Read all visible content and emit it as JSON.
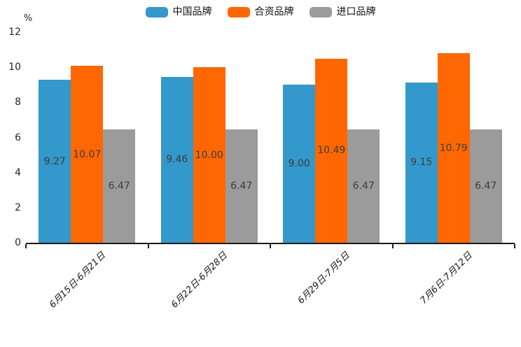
{
  "chart_data": {
    "type": "bar",
    "title": "",
    "ylabel": "%",
    "categories": [
      "6月15日-6月21日",
      "6月22日-6月28日",
      "6月29日-7月5日",
      "7月6日-7月12日"
    ],
    "series": [
      {
        "name": "中国品牌",
        "color": "#3398CB",
        "values": [
          9.27,
          9.46,
          9.0,
          9.15
        ]
      },
      {
        "name": "合资品牌",
        "color": "#FF6703",
        "values": [
          10.07,
          10.0,
          10.49,
          10.79
        ]
      },
      {
        "name": "进口品牌",
        "color": "#9B9B9B",
        "values": [
          6.47,
          6.47,
          6.47,
          6.47
        ]
      }
    ],
    "value_labels": [
      [
        "9.27",
        "9.46",
        "9.00",
        "9.15"
      ],
      [
        "10.07",
        "10.00",
        "10.49",
        "10.79"
      ],
      [
        "6.47",
        "6.47",
        "6.47",
        "6.47"
      ]
    ],
    "ylim": [
      0,
      12
    ],
    "yticks": [
      "0",
      "2",
      "4",
      "6",
      "8",
      "10",
      "12"
    ],
    "legend_position": "top",
    "grid": false
  }
}
